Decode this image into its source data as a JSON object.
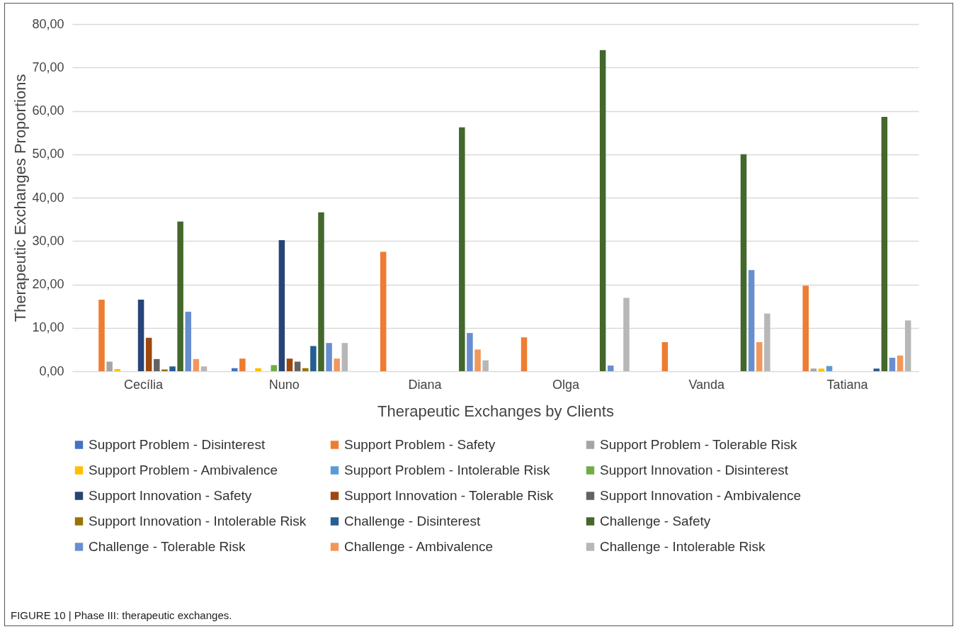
{
  "chart_data": {
    "type": "bar",
    "xlabel": "Therapeutic Exchanges by Clients",
    "ylabel": "Therapeutic Exchanges Proportions",
    "categories": [
      "Cecília",
      "Nuno",
      "Diana",
      "Olga",
      "Vanda",
      "Tatiana"
    ],
    "series": [
      {
        "name": "Support Problem - Disinterest",
        "color": "#4472c4",
        "values": [
          0,
          0.7,
          0,
          0,
          0,
          0
        ]
      },
      {
        "name": "Support Problem - Safety",
        "color": "#ed7d31",
        "values": [
          16.5,
          2.9,
          27.5,
          7.8,
          6.7,
          19.7
        ]
      },
      {
        "name": "Support Problem - Tolerable Risk",
        "color": "#a5a5a5",
        "values": [
          2.2,
          0,
          0,
          0,
          0,
          0.6
        ]
      },
      {
        "name": "Support Problem - Ambivalence",
        "color": "#ffc000",
        "values": [
          0.5,
          0.7,
          0,
          0,
          0,
          0.6
        ]
      },
      {
        "name": "Support Problem - Intolerable Risk",
        "color": "#5b9bd5",
        "values": [
          0,
          0,
          0,
          0,
          0,
          1.2
        ]
      },
      {
        "name": "Support Innovation - Disinterest",
        "color": "#70ad47",
        "values": [
          0,
          1.4,
          0,
          0,
          0,
          0
        ]
      },
      {
        "name": "Support Innovation - Safety",
        "color": "#264478",
        "values": [
          16.5,
          30.2,
          0,
          0,
          0,
          0
        ]
      },
      {
        "name": "Support Innovation - Tolerable Risk",
        "color": "#9e480e",
        "values": [
          7.7,
          2.9,
          0,
          0,
          0,
          0
        ]
      },
      {
        "name": "Support Innovation - Ambivalence",
        "color": "#636363",
        "values": [
          2.8,
          2.2,
          0,
          0,
          0,
          0
        ]
      },
      {
        "name": "Support Innovation - Intolerable Risk",
        "color": "#997300",
        "values": [
          0.4,
          0.7,
          0,
          0,
          0,
          0
        ]
      },
      {
        "name": "Challenge - Disinterest",
        "color": "#255e91",
        "values": [
          1.1,
          5.8,
          0,
          0,
          0,
          0.6
        ]
      },
      {
        "name": "Challenge - Safety",
        "color": "#43682b",
        "values": [
          34.5,
          36.6,
          56.2,
          74.0,
          50.0,
          58.6
        ]
      },
      {
        "name": "Challenge - Tolerable Risk",
        "color": "#698ed0",
        "values": [
          13.7,
          6.5,
          8.8,
          1.3,
          23.3,
          3.1
        ]
      },
      {
        "name": "Challenge - Ambivalence",
        "color": "#f1975a",
        "values": [
          2.8,
          2.9,
          5.0,
          0,
          6.7,
          3.6
        ]
      },
      {
        "name": "Challenge - Intolerable Risk",
        "color": "#b7b7b7",
        "values": [
          1.1,
          6.5,
          2.5,
          16.9,
          13.3,
          11.7
        ]
      }
    ],
    "ylim": [
      0,
      80
    ],
    "yticks": [
      {
        "value": 0,
        "label": "0,00"
      },
      {
        "value": 10,
        "label": "10,00"
      },
      {
        "value": 20,
        "label": "20,00"
      },
      {
        "value": 30,
        "label": "30,00"
      },
      {
        "value": 40,
        "label": "40,00"
      },
      {
        "value": 50,
        "label": "50,00"
      },
      {
        "value": 60,
        "label": "60,00"
      },
      {
        "value": 70,
        "label": "70,00"
      },
      {
        "value": 80,
        "label": "80,00"
      }
    ],
    "grid": "y",
    "legend": "bottom",
    "annotations": [
      "FIGURE 10 | Phase III: therapeutic exchanges."
    ]
  }
}
